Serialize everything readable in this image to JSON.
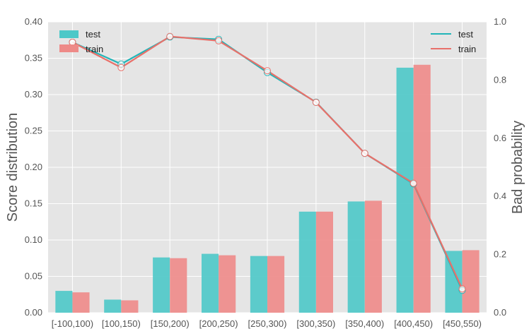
{
  "chart_data": {
    "type": "bar",
    "title": "",
    "categories": [
      "[-100,100)",
      "[100,150)",
      "[150,200)",
      "[200,250)",
      "[250,300)",
      "[300,350)",
      "[350,400)",
      "[400,450)",
      "[450,550)"
    ],
    "bar_series": [
      {
        "name": "test",
        "color": "#4cc8c8",
        "values": [
          0.03,
          0.018,
          0.076,
          0.081,
          0.078,
          0.139,
          0.153,
          0.337,
          0.085
        ]
      },
      {
        "name": "train",
        "color": "#ee8a88",
        "values": [
          0.028,
          0.017,
          0.075,
          0.079,
          0.078,
          0.139,
          0.154,
          0.341,
          0.086
        ]
      }
    ],
    "line_series": [
      {
        "name": "test",
        "color": "#22b5b8",
        "values": [
          0.93,
          0.855,
          0.948,
          0.94,
          0.826,
          0.724,
          0.548,
          0.443,
          0.077
        ]
      },
      {
        "name": "train",
        "color": "#e8706a",
        "values": [
          0.93,
          0.843,
          0.95,
          0.935,
          0.832,
          0.723,
          0.548,
          0.445,
          0.082
        ]
      }
    ],
    "ylabel": "Score distribution",
    "y2label": "Bad probability",
    "ylim": [
      0,
      0.4
    ],
    "y2lim": [
      0,
      1.0
    ],
    "yticks": [
      "0.00",
      "0.05",
      "0.10",
      "0.15",
      "0.20",
      "0.25",
      "0.30",
      "0.35",
      "0.40"
    ],
    "y2ticks": [
      "0.0",
      "0.2",
      "0.4",
      "0.6",
      "0.8",
      "1.0"
    ],
    "grid": true,
    "bar_legend_position": "top-left",
    "line_legend_position": "top-right",
    "background": "#e5e5e5"
  }
}
